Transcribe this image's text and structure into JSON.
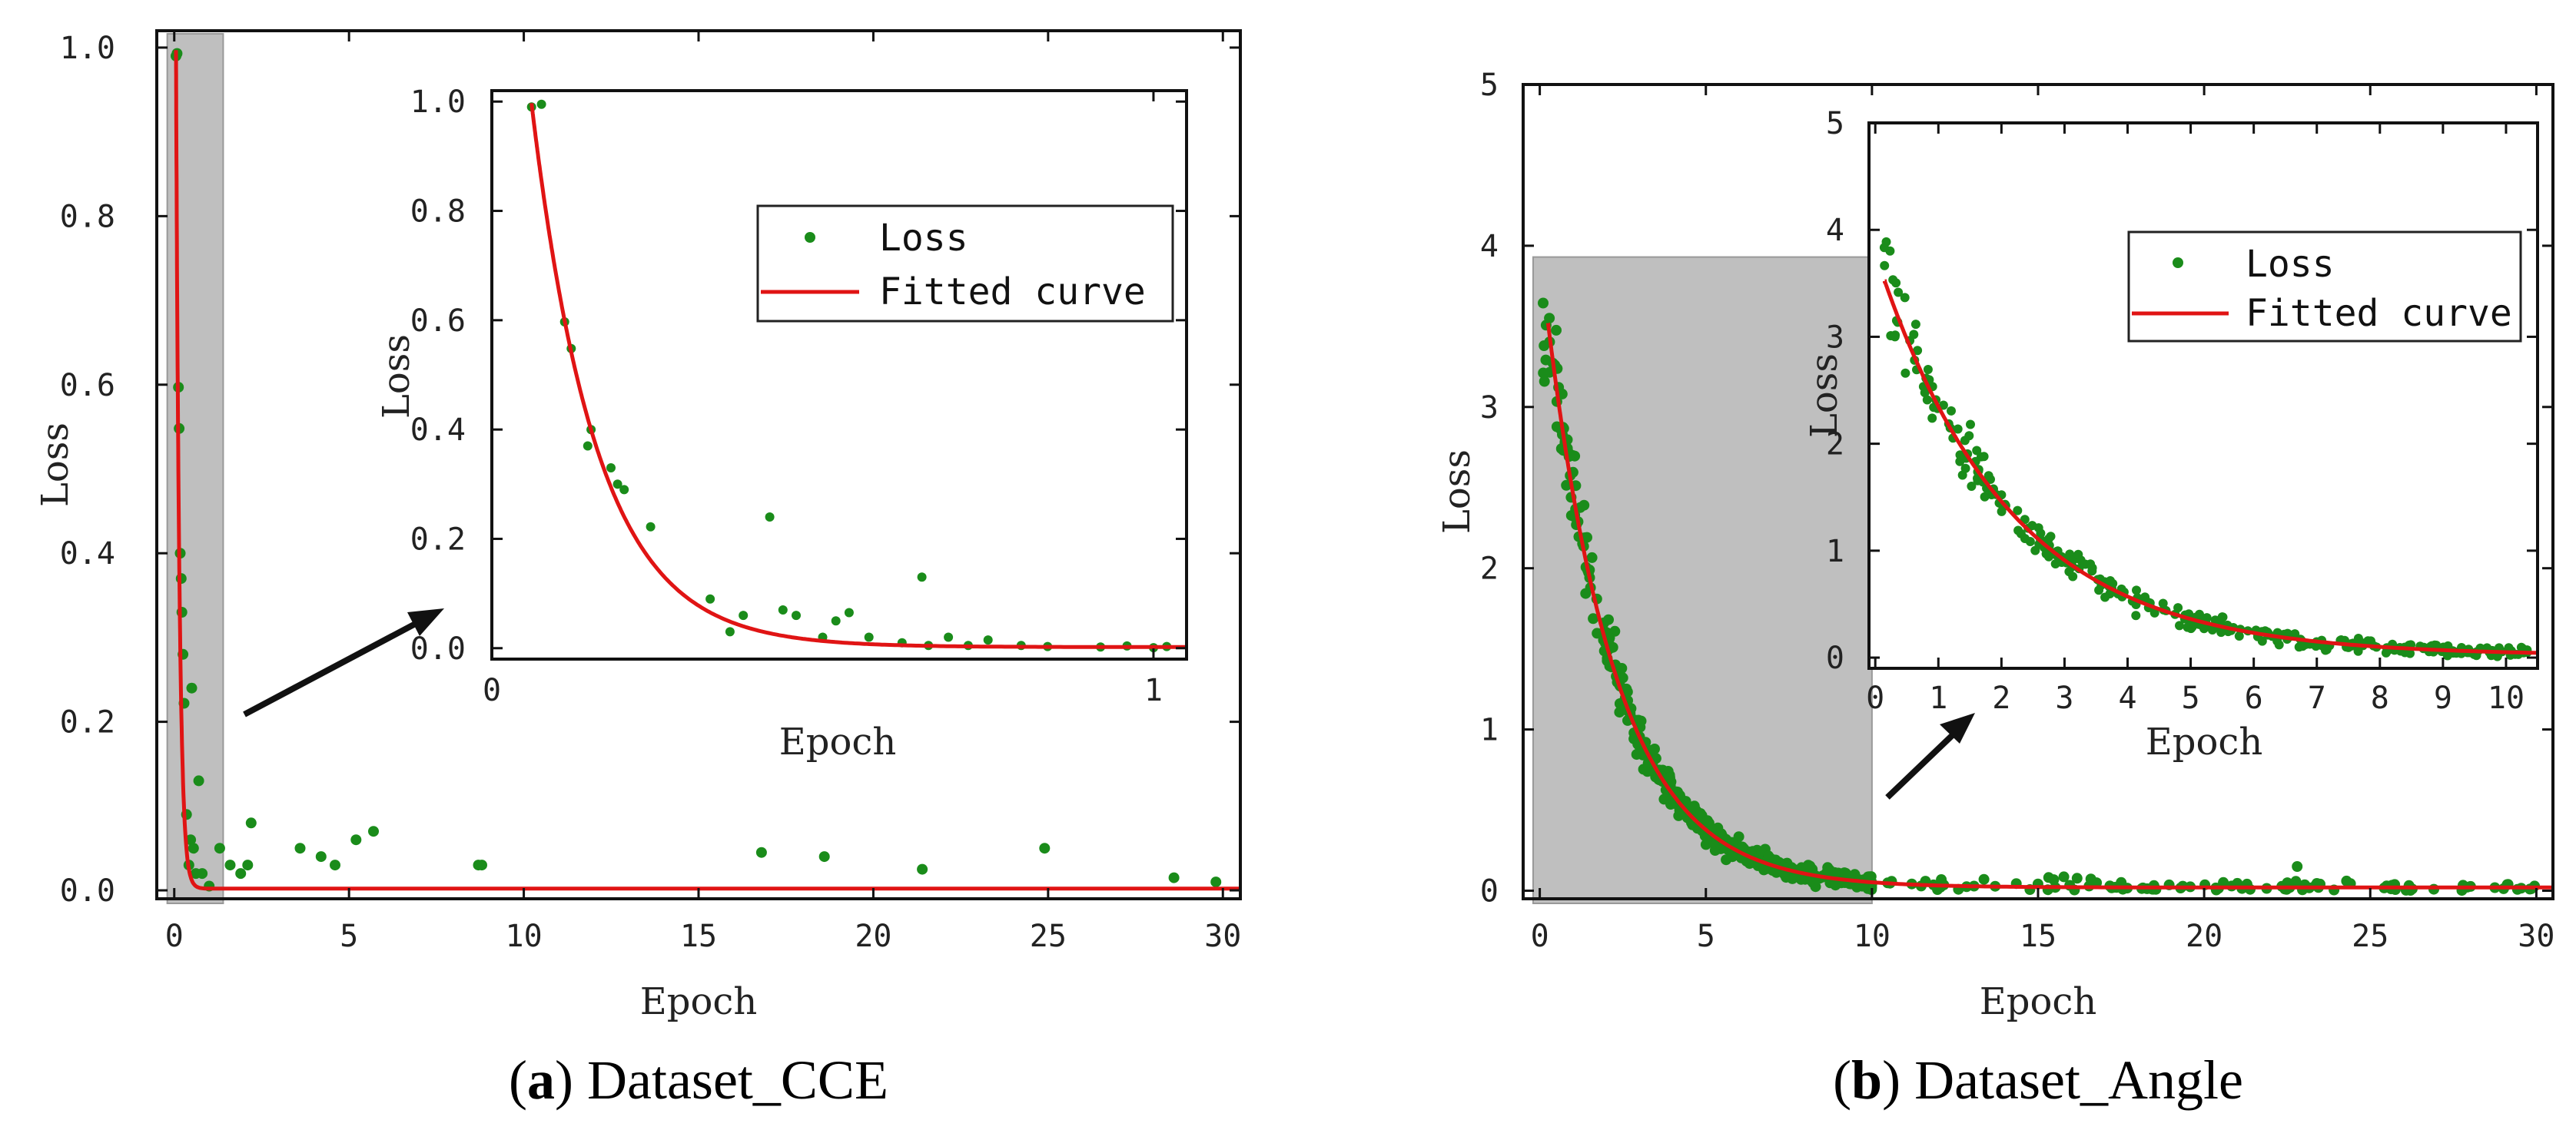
{
  "colors": {
    "loss": "#1a8c1a",
    "fit": "#e01414",
    "shade": "#bfbfbf",
    "axis": "#111111",
    "arrow": "#111111"
  },
  "chart_data": [
    {
      "id": "a-main",
      "type": "scatter",
      "xlabel": "Epoch",
      "ylabel": "Loss",
      "xlim": [
        -0.5,
        30.5
      ],
      "ylim": [
        -0.01,
        1.02
      ],
      "xticks": [
        0,
        5,
        10,
        15,
        20,
        25,
        30
      ],
      "xtick_labels": [
        "0",
        "5",
        "10",
        "15",
        "20",
        "25",
        "30"
      ],
      "yticks": [
        0.0,
        0.2,
        0.4,
        0.6,
        0.8,
        1.0
      ],
      "ytick_labels": [
        "0.0",
        "0.2",
        "0.4",
        "0.6",
        "0.8",
        "1.0"
      ],
      "fit": {
        "a": 0.995,
        "k": 10.2,
        "x0": 0.05,
        "c": 0.002
      },
      "highlight": [
        -0.2,
        1.4
      ],
      "series": [
        {
          "name": "Loss",
          "points": [
            [
              0.05,
              0.99
            ],
            [
              0.08,
              0.993
            ],
            [
              0.12,
              0.597
            ],
            [
              0.14,
              0.548
            ],
            [
              0.17,
              0.4
            ],
            [
              0.2,
              0.37
            ],
            [
              0.22,
              0.33
            ],
            [
              0.25,
              0.28
            ],
            [
              0.28,
              0.222
            ],
            [
              0.35,
              0.09
            ],
            [
              0.42,
              0.03
            ],
            [
              0.47,
              0.06
            ],
            [
              0.5,
              0.24
            ],
            [
              0.55,
              0.05
            ],
            [
              0.62,
              0.02
            ],
            [
              0.7,
              0.13
            ],
            [
              0.8,
              0.02
            ],
            [
              1.0,
              0.005
            ],
            [
              1.3,
              0.05
            ],
            [
              1.6,
              0.03
            ],
            [
              1.9,
              0.02
            ],
            [
              2.1,
              0.03
            ],
            [
              2.2,
              0.08
            ],
            [
              3.6,
              0.05
            ],
            [
              4.2,
              0.04
            ],
            [
              4.6,
              0.03
            ],
            [
              5.2,
              0.06
            ],
            [
              5.7,
              0.07
            ],
            [
              8.7,
              0.03
            ],
            [
              8.8,
              0.03
            ],
            [
              16.8,
              0.045
            ],
            [
              18.6,
              0.04
            ],
            [
              21.4,
              0.025
            ],
            [
              24.9,
              0.05
            ],
            [
              28.6,
              0.015
            ],
            [
              29.8,
              0.01
            ]
          ]
        }
      ]
    },
    {
      "id": "a-inset",
      "type": "scatter",
      "xlabel": "Epoch",
      "ylabel": "Loss",
      "xlim": [
        0,
        1.05
      ],
      "ylim": [
        -0.02,
        1.02
      ],
      "xticks": [
        0,
        1
      ],
      "xtick_labels": [
        "0",
        "1"
      ],
      "yticks": [
        0.0,
        0.2,
        0.4,
        0.6,
        0.8,
        1.0
      ],
      "ytick_labels": [
        "0.0",
        "0.2",
        "0.4",
        "0.6",
        "0.8",
        "1.0"
      ],
      "legend": [
        "Loss",
        "Fitted curve"
      ],
      "fit": {
        "a": 0.995,
        "k": 10.2,
        "x0": 0.06,
        "c": 0.002
      },
      "series": [
        {
          "name": "Loss",
          "points": [
            [
              0.06,
              0.99
            ],
            [
              0.075,
              0.995
            ],
            [
              0.11,
              0.597
            ],
            [
              0.12,
              0.548
            ],
            [
              0.145,
              0.37
            ],
            [
              0.15,
              0.4
            ],
            [
              0.18,
              0.33
            ],
            [
              0.19,
              0.3
            ],
            [
              0.2,
              0.29
            ],
            [
              0.24,
              0.222
            ],
            [
              0.33,
              0.09
            ],
            [
              0.36,
              0.03
            ],
            [
              0.38,
              0.06
            ],
            [
              0.42,
              0.24
            ],
            [
              0.44,
              0.07
            ],
            [
              0.46,
              0.06
            ],
            [
              0.5,
              0.02
            ],
            [
              0.52,
              0.05
            ],
            [
              0.54,
              0.065
            ],
            [
              0.57,
              0.02
            ],
            [
              0.62,
              0.01
            ],
            [
              0.65,
              0.13
            ],
            [
              0.66,
              0.005
            ],
            [
              0.69,
              0.02
            ],
            [
              0.72,
              0.005
            ],
            [
              0.75,
              0.015
            ],
            [
              0.8,
              0.005
            ],
            [
              0.84,
              0.003
            ],
            [
              0.92,
              0.002
            ],
            [
              0.96,
              0.004
            ],
            [
              1.0,
              0.001
            ],
            [
              1.02,
              0.003
            ]
          ]
        }
      ]
    },
    {
      "id": "b-main",
      "type": "scatter",
      "xlabel": "Epoch",
      "ylabel": "Loss",
      "xlim": [
        -0.5,
        30.5
      ],
      "ylim": [
        -0.05,
        5.0
      ],
      "xticks": [
        0,
        5,
        10,
        15,
        20,
        25,
        30
      ],
      "xtick_labels": [
        "0",
        "5",
        "10",
        "15",
        "20",
        "25",
        "30"
      ],
      "yticks": [
        0,
        1,
        2,
        3,
        4,
        5
      ],
      "ytick_labels": [
        "0",
        "1",
        "2",
        "3",
        "4",
        "5"
      ],
      "fit": {
        "a": 3.5,
        "k": 0.48,
        "x0": 0.25,
        "c": 0.02
      },
      "highlight": [
        -0.2,
        10.0
      ],
      "scatter_model": {
        "n": 520,
        "xmin": 0.1,
        "xmax": 30.0,
        "dense_until": 10.0,
        "noise": 0.18,
        "seed": 11,
        "extra": [
          [
            22.8,
            0.15
          ]
        ]
      }
    },
    {
      "id": "b-inset",
      "type": "scatter",
      "xlabel": "Epoch",
      "ylabel": "Loss",
      "xlim": [
        -0.1,
        10.5
      ],
      "ylim": [
        -0.1,
        5.0
      ],
      "xticks": [
        0,
        1,
        2,
        3,
        4,
        5,
        6,
        7,
        8,
        9,
        10
      ],
      "xtick_labels": [
        "0",
        "1",
        "2",
        "3",
        "4",
        "5",
        "6",
        "7",
        "8",
        "9",
        "10"
      ],
      "yticks": [
        0,
        1,
        2,
        3,
        4,
        5
      ],
      "ytick_labels": [
        "0",
        "1",
        "2",
        "3",
        "4",
        "5"
      ],
      "legend": [
        "Loss",
        "Fitted curve"
      ],
      "fit": {
        "a": 3.5,
        "k": 0.48,
        "x0": 0.15,
        "c": 0.02
      },
      "scatter_model": {
        "n": 340,
        "xmin": 0.1,
        "xmax": 10.4,
        "dense_until": 10.5,
        "noise": 0.2,
        "seed": 5,
        "extra": []
      }
    }
  ],
  "captions": [
    {
      "label": "a",
      "text": ") Dataset_CCE",
      "open": "("
    },
    {
      "label": "b",
      "text": ") Dataset_Angle",
      "open": "("
    }
  ]
}
